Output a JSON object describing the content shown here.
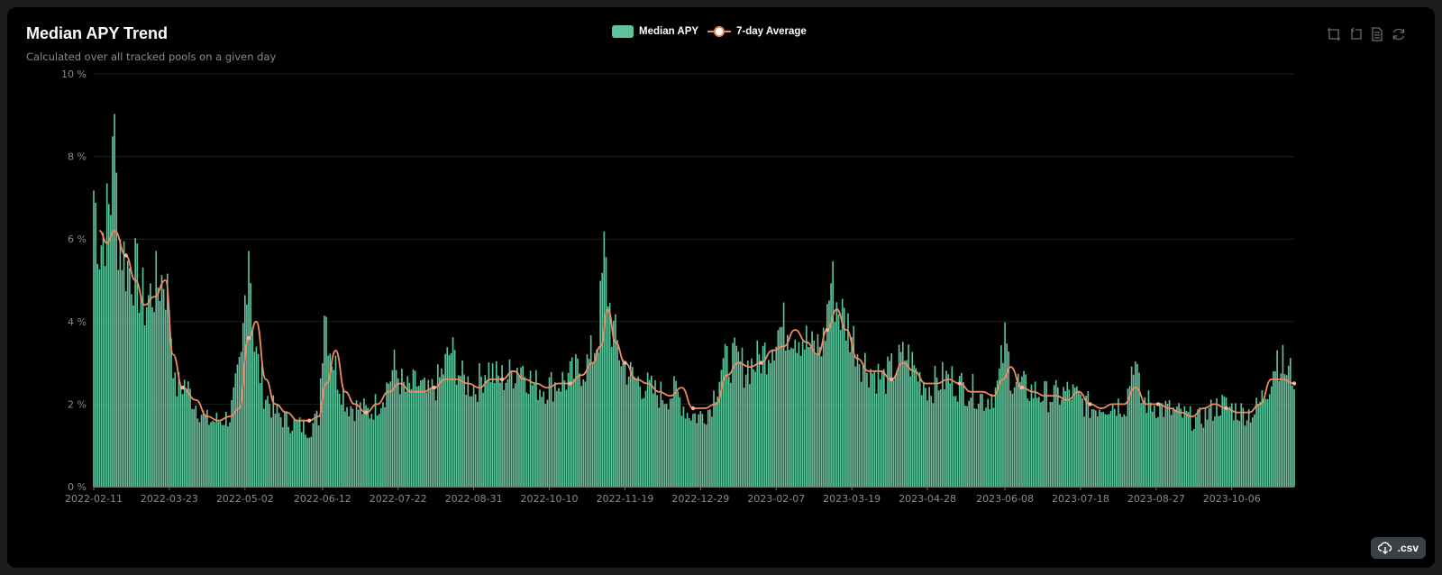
{
  "card": {
    "title": "Median APY Trend",
    "subtitle": "Calculated over all tracked pools on a given day"
  },
  "legend": {
    "bar_label": "Median APY",
    "line_label": "7-day Average"
  },
  "toolbox": [
    "zoom-icon",
    "zoom-reset-icon",
    "data-view-icon",
    "restore-icon"
  ],
  "csv_button": {
    "label": ".csv",
    "icon": "cloud-download-icon"
  },
  "colors": {
    "bar": "#5ec49b",
    "line": "#f08a63",
    "grid": "#1e1e1e",
    "axis_text": "#8a8a8a"
  },
  "chart_data": {
    "type": "bar",
    "title": "Median APY Trend",
    "subtitle": "Calculated over all tracked pools on a given day",
    "x_start": "2022-02-11",
    "x_end": "2023-11-08",
    "x_ticks": [
      "2022-02-11",
      "2022-03-23",
      "2022-05-02",
      "2022-06-12",
      "2022-07-22",
      "2022-08-31",
      "2022-10-10",
      "2022-11-19",
      "2022-12-29",
      "2023-02-07",
      "2023-03-19",
      "2023-04-28",
      "2023-06-08",
      "2023-07-18",
      "2023-08-27",
      "2023-10-06"
    ],
    "y_ticks": [
      "0 %",
      "2 %",
      "4 %",
      "6 %",
      "8 %",
      "10 %"
    ],
    "ylim": [
      0,
      10
    ],
    "y_unit": "%",
    "grid": true,
    "legend_position": "top-center",
    "series": [
      {
        "name": "Median APY",
        "type": "bar",
        "points": [
          [
            "2022-02-11",
            7.2
          ],
          [
            "2022-02-14",
            5.8
          ],
          [
            "2022-02-17",
            6.3
          ],
          [
            "2022-02-20",
            6.8
          ],
          [
            "2022-02-21",
            9.2
          ],
          [
            "2022-02-24",
            6.2
          ],
          [
            "2022-02-28",
            5.4
          ],
          [
            "2022-03-05",
            5.2
          ],
          [
            "2022-03-10",
            4.4
          ],
          [
            "2022-03-15",
            4.8
          ],
          [
            "2022-03-20",
            5.1
          ],
          [
            "2022-03-23",
            4.5
          ],
          [
            "2022-03-26",
            2.4
          ],
          [
            "2022-03-31",
            2.5
          ],
          [
            "2022-04-06",
            2.0
          ],
          [
            "2022-04-12",
            1.6
          ],
          [
            "2022-04-18",
            1.6
          ],
          [
            "2022-04-24",
            1.7
          ],
          [
            "2022-04-30",
            3.0
          ],
          [
            "2022-05-04",
            6.1
          ],
          [
            "2022-05-07",
            3.4
          ],
          [
            "2022-05-12",
            2.3
          ],
          [
            "2022-05-18",
            1.8
          ],
          [
            "2022-05-24",
            1.6
          ],
          [
            "2022-05-30",
            1.5
          ],
          [
            "2022-06-05",
            1.4
          ],
          [
            "2022-06-10",
            1.7
          ],
          [
            "2022-06-13",
            4.5
          ],
          [
            "2022-06-16",
            3.4
          ],
          [
            "2022-06-20",
            2.7
          ],
          [
            "2022-06-25",
            2.0
          ],
          [
            "2022-07-01",
            1.9
          ],
          [
            "2022-07-07",
            1.8
          ],
          [
            "2022-07-14",
            2.2
          ],
          [
            "2022-07-20",
            2.9
          ],
          [
            "2022-07-26",
            2.3
          ],
          [
            "2022-08-01",
            2.5
          ],
          [
            "2022-08-07",
            2.2
          ],
          [
            "2022-08-13",
            2.6
          ],
          [
            "2022-08-19",
            3.3
          ],
          [
            "2022-08-25",
            2.6
          ],
          [
            "2022-09-01",
            2.4
          ],
          [
            "2022-09-07",
            2.9
          ],
          [
            "2022-09-13",
            2.6
          ],
          [
            "2022-09-19",
            2.7
          ],
          [
            "2022-09-25",
            3.0
          ],
          [
            "2022-10-01",
            2.5
          ],
          [
            "2022-10-07",
            2.4
          ],
          [
            "2022-10-13",
            2.5
          ],
          [
            "2022-10-19",
            2.6
          ],
          [
            "2022-10-25",
            2.8
          ],
          [
            "2022-10-31",
            3.0
          ],
          [
            "2022-11-05",
            3.7
          ],
          [
            "2022-11-08",
            5.6
          ],
          [
            "2022-11-12",
            3.9
          ],
          [
            "2022-11-17",
            3.1
          ],
          [
            "2022-11-22",
            2.7
          ],
          [
            "2022-11-28",
            2.5
          ],
          [
            "2022-12-04",
            2.3
          ],
          [
            "2022-12-10",
            2.2
          ],
          [
            "2022-12-16",
            2.3
          ],
          [
            "2022-12-22",
            1.8
          ],
          [
            "2022-12-28",
            1.7
          ],
          [
            "2023-01-03",
            1.9
          ],
          [
            "2023-01-09",
            2.9
          ],
          [
            "2023-01-15",
            3.1
          ],
          [
            "2023-01-21",
            2.9
          ],
          [
            "2023-01-27",
            3.0
          ],
          [
            "2023-02-02",
            3.3
          ],
          [
            "2023-02-08",
            3.8
          ],
          [
            "2023-02-14",
            3.9
          ],
          [
            "2023-02-20",
            3.7
          ],
          [
            "2023-02-26",
            3.3
          ],
          [
            "2023-03-04",
            3.5
          ],
          [
            "2023-03-08",
            5.0
          ],
          [
            "2023-03-12",
            4.3
          ],
          [
            "2023-03-18",
            3.8
          ],
          [
            "2023-03-24",
            3.1
          ],
          [
            "2023-03-30",
            2.8
          ],
          [
            "2023-04-05",
            2.6
          ],
          [
            "2023-04-11",
            2.9
          ],
          [
            "2023-04-17",
            3.2
          ],
          [
            "2023-04-23",
            2.7
          ],
          [
            "2023-04-29",
            2.4
          ],
          [
            "2023-05-05",
            2.6
          ],
          [
            "2023-05-11",
            2.6
          ],
          [
            "2023-05-17",
            2.4
          ],
          [
            "2023-05-23",
            2.3
          ],
          [
            "2023-05-29",
            2.1
          ],
          [
            "2023-06-04",
            2.4
          ],
          [
            "2023-06-08",
            3.5
          ],
          [
            "2023-06-12",
            2.6
          ],
          [
            "2023-06-18",
            2.4
          ],
          [
            "2023-06-24",
            2.3
          ],
          [
            "2023-06-30",
            2.2
          ],
          [
            "2023-07-06",
            2.2
          ],
          [
            "2023-07-12",
            2.3
          ],
          [
            "2023-07-18",
            2.1
          ],
          [
            "2023-07-24",
            1.9
          ],
          [
            "2023-07-30",
            2.0
          ],
          [
            "2023-08-05",
            2.0
          ],
          [
            "2023-08-11",
            2.0
          ],
          [
            "2023-08-15",
            3.2
          ],
          [
            "2023-08-19",
            2.1
          ],
          [
            "2023-08-25",
            2.0
          ],
          [
            "2023-08-31",
            1.9
          ],
          [
            "2023-09-06",
            1.8
          ],
          [
            "2023-09-12",
            1.7
          ],
          [
            "2023-09-18",
            1.6
          ],
          [
            "2023-09-24",
            1.8
          ],
          [
            "2023-09-30",
            2.0
          ],
          [
            "2023-10-06",
            1.9
          ],
          [
            "2023-10-12",
            1.8
          ],
          [
            "2023-10-18",
            1.8
          ],
          [
            "2023-10-24",
            2.3
          ],
          [
            "2023-10-30",
            3.2
          ],
          [
            "2023-11-04",
            2.8
          ],
          [
            "2023-11-08",
            2.7
          ]
        ]
      },
      {
        "name": "7-day Average",
        "type": "line",
        "points": [
          [
            "2022-02-14",
            6.2
          ],
          [
            "2022-02-18",
            5.9
          ],
          [
            "2022-02-22",
            6.2
          ],
          [
            "2022-02-28",
            5.6
          ],
          [
            "2022-03-05",
            5.0
          ],
          [
            "2022-03-10",
            4.4
          ],
          [
            "2022-03-15",
            4.6
          ],
          [
            "2022-03-21",
            5.0
          ],
          [
            "2022-03-25",
            3.2
          ],
          [
            "2022-03-30",
            2.4
          ],
          [
            "2022-04-06",
            2.1
          ],
          [
            "2022-04-12",
            1.7
          ],
          [
            "2022-04-18",
            1.6
          ],
          [
            "2022-04-24",
            1.7
          ],
          [
            "2022-04-29",
            1.9
          ],
          [
            "2022-05-04",
            3.6
          ],
          [
            "2022-05-08",
            4.0
          ],
          [
            "2022-05-13",
            2.6
          ],
          [
            "2022-05-18",
            2.0
          ],
          [
            "2022-05-24",
            1.8
          ],
          [
            "2022-05-30",
            1.6
          ],
          [
            "2022-06-05",
            1.6
          ],
          [
            "2022-06-10",
            1.7
          ],
          [
            "2022-06-14",
            2.5
          ],
          [
            "2022-06-19",
            3.3
          ],
          [
            "2022-06-24",
            2.3
          ],
          [
            "2022-06-29",
            2.0
          ],
          [
            "2022-07-05",
            1.8
          ],
          [
            "2022-07-11",
            2.0
          ],
          [
            "2022-07-17",
            2.3
          ],
          [
            "2022-07-23",
            2.5
          ],
          [
            "2022-07-29",
            2.3
          ],
          [
            "2022-08-04",
            2.3
          ],
          [
            "2022-08-10",
            2.4
          ],
          [
            "2022-08-16",
            2.6
          ],
          [
            "2022-08-22",
            2.6
          ],
          [
            "2022-08-28",
            2.5
          ],
          [
            "2022-09-03",
            2.4
          ],
          [
            "2022-09-09",
            2.6
          ],
          [
            "2022-09-15",
            2.6
          ],
          [
            "2022-09-21",
            2.8
          ],
          [
            "2022-09-27",
            2.6
          ],
          [
            "2022-10-03",
            2.5
          ],
          [
            "2022-10-09",
            2.4
          ],
          [
            "2022-10-15",
            2.5
          ],
          [
            "2022-10-21",
            2.5
          ],
          [
            "2022-10-27",
            2.7
          ],
          [
            "2022-11-02",
            3.0
          ],
          [
            "2022-11-06",
            3.4
          ],
          [
            "2022-11-10",
            4.3
          ],
          [
            "2022-11-14",
            3.5
          ],
          [
            "2022-11-19",
            3.0
          ],
          [
            "2022-11-25",
            2.6
          ],
          [
            "2022-12-01",
            2.5
          ],
          [
            "2022-12-07",
            2.3
          ],
          [
            "2022-12-13",
            2.2
          ],
          [
            "2022-12-19",
            2.4
          ],
          [
            "2022-12-25",
            1.9
          ],
          [
            "2022-12-31",
            1.9
          ],
          [
            "2023-01-06",
            2.0
          ],
          [
            "2023-01-12",
            2.7
          ],
          [
            "2023-01-18",
            3.0
          ],
          [
            "2023-01-24",
            2.9
          ],
          [
            "2023-01-30",
            3.0
          ],
          [
            "2023-02-05",
            3.3
          ],
          [
            "2023-02-11",
            3.4
          ],
          [
            "2023-02-17",
            3.8
          ],
          [
            "2023-02-23",
            3.5
          ],
          [
            "2023-03-01",
            3.2
          ],
          [
            "2023-03-06",
            3.8
          ],
          [
            "2023-03-11",
            4.3
          ],
          [
            "2023-03-16",
            3.8
          ],
          [
            "2023-03-22",
            3.1
          ],
          [
            "2023-03-28",
            2.8
          ],
          [
            "2023-04-03",
            2.8
          ],
          [
            "2023-04-09",
            2.6
          ],
          [
            "2023-04-15",
            3.0
          ],
          [
            "2023-04-21",
            2.8
          ],
          [
            "2023-04-27",
            2.5
          ],
          [
            "2023-05-03",
            2.5
          ],
          [
            "2023-05-09",
            2.6
          ],
          [
            "2023-05-15",
            2.5
          ],
          [
            "2023-05-21",
            2.3
          ],
          [
            "2023-05-27",
            2.3
          ],
          [
            "2023-06-02",
            2.2
          ],
          [
            "2023-06-07",
            2.6
          ],
          [
            "2023-06-11",
            2.9
          ],
          [
            "2023-06-17",
            2.4
          ],
          [
            "2023-06-23",
            2.3
          ],
          [
            "2023-06-29",
            2.2
          ],
          [
            "2023-07-05",
            2.2
          ],
          [
            "2023-07-11",
            2.1
          ],
          [
            "2023-07-17",
            2.3
          ],
          [
            "2023-07-23",
            2.0
          ],
          [
            "2023-07-29",
            1.9
          ],
          [
            "2023-08-04",
            2.0
          ],
          [
            "2023-08-10",
            2.0
          ],
          [
            "2023-08-16",
            2.4
          ],
          [
            "2023-08-22",
            2.0
          ],
          [
            "2023-08-28",
            2.0
          ],
          [
            "2023-09-03",
            1.9
          ],
          [
            "2023-09-09",
            1.8
          ],
          [
            "2023-09-15",
            1.7
          ],
          [
            "2023-09-21",
            1.9
          ],
          [
            "2023-09-27",
            2.0
          ],
          [
            "2023-10-03",
            1.9
          ],
          [
            "2023-10-09",
            1.8
          ],
          [
            "2023-10-15",
            1.8
          ],
          [
            "2023-10-21",
            2.0
          ],
          [
            "2023-10-27",
            2.6
          ],
          [
            "2023-11-02",
            2.6
          ],
          [
            "2023-11-08",
            2.5
          ]
        ]
      }
    ]
  }
}
